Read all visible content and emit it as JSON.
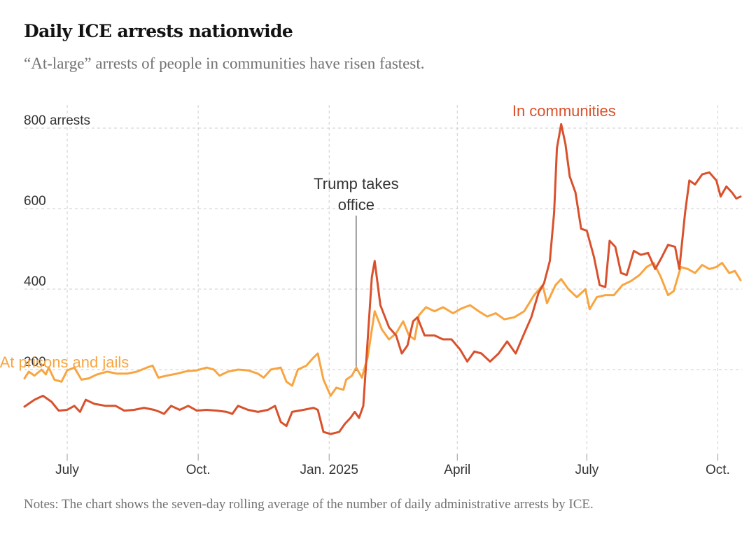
{
  "header": {
    "title": "Daily ICE arrests nationwide",
    "subtitle": "“At-large” arrests of people in communities have risen fastest."
  },
  "notes": "Notes: The chart shows the seven-day rolling average of the number of daily administrative arrests by ICE.",
  "chart_data": {
    "type": "line",
    "title": "Daily ICE arrests nationwide",
    "subtitle": "“At-large” arrests of people in communities have risen fastest.",
    "xlabel": "",
    "ylabel": "arrests",
    "ylim": [
      0,
      800
    ],
    "xlim": [
      "2024-06-01",
      "2025-10-17"
    ],
    "grid": true,
    "y_ticks": [
      {
        "value": 800,
        "label": "800 arrests"
      },
      {
        "value": 600,
        "label": "600"
      },
      {
        "value": 400,
        "label": "400"
      },
      {
        "value": 200,
        "label": "200"
      }
    ],
    "x_ticks": [
      {
        "date": "2024-07-01",
        "label": "July"
      },
      {
        "date": "2024-10-01",
        "label": "Oct."
      },
      {
        "date": "2025-01-01",
        "label": "Jan. 2025"
      },
      {
        "date": "2025-04-01",
        "label": "April"
      },
      {
        "date": "2025-07-01",
        "label": "July"
      },
      {
        "date": "2025-10-01",
        "label": "Oct."
      }
    ],
    "annotations": [
      {
        "date": "2025-01-20",
        "label_lines": [
          "Trump takes",
          "office"
        ]
      }
    ],
    "colors": {
      "communities": "#d9512c",
      "prisons": "#f8a541"
    },
    "series": [
      {
        "key": "prisons",
        "name": "At prisons and jails",
        "color": "#f8a541",
        "points": [
          [
            "2024-06-01",
            178
          ],
          [
            "2024-06-04",
            195
          ],
          [
            "2024-06-08",
            185
          ],
          [
            "2024-06-13",
            200
          ],
          [
            "2024-06-16",
            188
          ],
          [
            "2024-06-18",
            205
          ],
          [
            "2024-06-22",
            175
          ],
          [
            "2024-06-27",
            170
          ],
          [
            "2024-07-01",
            198
          ],
          [
            "2024-07-06",
            205
          ],
          [
            "2024-07-11",
            175
          ],
          [
            "2024-07-16",
            178
          ],
          [
            "2024-07-22",
            188
          ],
          [
            "2024-07-29",
            195
          ],
          [
            "2024-08-05",
            190
          ],
          [
            "2024-08-12",
            190
          ],
          [
            "2024-08-19",
            195
          ],
          [
            "2024-08-26",
            205
          ],
          [
            "2024-08-30",
            210
          ],
          [
            "2024-09-03",
            180
          ],
          [
            "2024-09-09",
            185
          ],
          [
            "2024-09-16",
            190
          ],
          [
            "2024-09-23",
            196
          ],
          [
            "2024-09-30",
            198
          ],
          [
            "2024-10-07",
            205
          ],
          [
            "2024-10-12",
            200
          ],
          [
            "2024-10-16",
            185
          ],
          [
            "2024-10-22",
            195
          ],
          [
            "2024-10-29",
            200
          ],
          [
            "2024-11-05",
            198
          ],
          [
            "2024-11-12",
            190
          ],
          [
            "2024-11-16",
            180
          ],
          [
            "2024-11-21",
            200
          ],
          [
            "2024-11-28",
            205
          ],
          [
            "2024-12-02",
            170
          ],
          [
            "2024-12-06",
            160
          ],
          [
            "2024-12-10",
            200
          ],
          [
            "2024-12-16",
            210
          ],
          [
            "2024-12-21",
            230
          ],
          [
            "2024-12-24",
            240
          ],
          [
            "2024-12-28",
            175
          ],
          [
            "2025-01-02",
            135
          ],
          [
            "2025-01-06",
            155
          ],
          [
            "2025-01-11",
            150
          ],
          [
            "2025-01-13",
            175
          ],
          [
            "2025-01-17",
            185
          ],
          [
            "2025-01-20",
            205
          ],
          [
            "2025-01-24",
            180
          ],
          [
            "2025-01-28",
            230
          ],
          [
            "2025-02-02",
            345
          ],
          [
            "2025-02-07",
            300
          ],
          [
            "2025-02-12",
            275
          ],
          [
            "2025-02-17",
            290
          ],
          [
            "2025-02-22",
            320
          ],
          [
            "2025-02-26",
            285
          ],
          [
            "2025-03-02",
            275
          ],
          [
            "2025-03-05",
            335
          ],
          [
            "2025-03-10",
            355
          ],
          [
            "2025-03-16",
            345
          ],
          [
            "2025-03-22",
            355
          ],
          [
            "2025-03-29",
            340
          ],
          [
            "2025-04-04",
            352
          ],
          [
            "2025-04-10",
            360
          ],
          [
            "2025-04-16",
            345
          ],
          [
            "2025-04-22",
            332
          ],
          [
            "2025-04-28",
            340
          ],
          [
            "2025-05-04",
            325
          ],
          [
            "2025-05-11",
            330
          ],
          [
            "2025-05-18",
            345
          ],
          [
            "2025-05-25",
            385
          ],
          [
            "2025-05-31",
            410
          ],
          [
            "2025-06-03",
            365
          ],
          [
            "2025-06-09",
            410
          ],
          [
            "2025-06-13",
            425
          ],
          [
            "2025-06-18",
            400
          ],
          [
            "2025-06-24",
            380
          ],
          [
            "2025-06-30",
            400
          ],
          [
            "2025-07-03",
            350
          ],
          [
            "2025-07-08",
            380
          ],
          [
            "2025-07-14",
            385
          ],
          [
            "2025-07-20",
            385
          ],
          [
            "2025-07-26",
            410
          ],
          [
            "2025-08-01",
            420
          ],
          [
            "2025-08-07",
            435
          ],
          [
            "2025-08-12",
            455
          ],
          [
            "2025-08-17",
            465
          ],
          [
            "2025-08-22",
            430
          ],
          [
            "2025-08-27",
            385
          ],
          [
            "2025-08-31",
            395
          ],
          [
            "2025-09-05",
            455
          ],
          [
            "2025-09-10",
            450
          ],
          [
            "2025-09-15",
            440
          ],
          [
            "2025-09-20",
            460
          ],
          [
            "2025-09-25",
            450
          ],
          [
            "2025-09-30",
            455
          ],
          [
            "2025-10-04",
            465
          ],
          [
            "2025-10-09",
            440
          ],
          [
            "2025-10-13",
            445
          ],
          [
            "2025-10-17",
            422
          ]
        ]
      },
      {
        "key": "communities",
        "name": "In communities",
        "color": "#d9512c",
        "points": [
          [
            "2024-06-01",
            108
          ],
          [
            "2024-06-08",
            125
          ],
          [
            "2024-06-14",
            135
          ],
          [
            "2024-06-20",
            120
          ],
          [
            "2024-06-25",
            98
          ],
          [
            "2024-07-01",
            100
          ],
          [
            "2024-07-06",
            110
          ],
          [
            "2024-07-10",
            95
          ],
          [
            "2024-07-14",
            125
          ],
          [
            "2024-07-20",
            115
          ],
          [
            "2024-07-28",
            110
          ],
          [
            "2024-08-04",
            110
          ],
          [
            "2024-08-10",
            98
          ],
          [
            "2024-08-17",
            100
          ],
          [
            "2024-08-24",
            105
          ],
          [
            "2024-08-31",
            100
          ],
          [
            "2024-09-04",
            95
          ],
          [
            "2024-09-07",
            90
          ],
          [
            "2024-09-12",
            110
          ],
          [
            "2024-09-18",
            100
          ],
          [
            "2024-09-24",
            110
          ],
          [
            "2024-09-30",
            98
          ],
          [
            "2024-10-07",
            100
          ],
          [
            "2024-10-14",
            98
          ],
          [
            "2024-10-21",
            95
          ],
          [
            "2024-10-25",
            90
          ],
          [
            "2024-10-29",
            110
          ],
          [
            "2024-11-05",
            100
          ],
          [
            "2024-11-12",
            95
          ],
          [
            "2024-11-19",
            100
          ],
          [
            "2024-11-24",
            110
          ],
          [
            "2024-11-28",
            70
          ],
          [
            "2024-12-02",
            60
          ],
          [
            "2024-12-06",
            95
          ],
          [
            "2024-12-14",
            100
          ],
          [
            "2024-12-21",
            105
          ],
          [
            "2024-12-24",
            100
          ],
          [
            "2024-12-28",
            45
          ],
          [
            "2025-01-02",
            40
          ],
          [
            "2025-01-08",
            45
          ],
          [
            "2025-01-12",
            65
          ],
          [
            "2025-01-16",
            80
          ],
          [
            "2025-01-19",
            95
          ],
          [
            "2025-01-22",
            80
          ],
          [
            "2025-01-25",
            110
          ],
          [
            "2025-01-28",
            270
          ],
          [
            "2025-01-31",
            430
          ],
          [
            "2025-02-02",
            470
          ],
          [
            "2025-02-06",
            360
          ],
          [
            "2025-02-12",
            305
          ],
          [
            "2025-02-17",
            285
          ],
          [
            "2025-02-21",
            240
          ],
          [
            "2025-02-25",
            260
          ],
          [
            "2025-03-01",
            320
          ],
          [
            "2025-03-04",
            330
          ],
          [
            "2025-03-09",
            285
          ],
          [
            "2025-03-16",
            285
          ],
          [
            "2025-03-22",
            275
          ],
          [
            "2025-03-28",
            275
          ],
          [
            "2025-04-03",
            250
          ],
          [
            "2025-04-08",
            220
          ],
          [
            "2025-04-13",
            245
          ],
          [
            "2025-04-18",
            240
          ],
          [
            "2025-04-24",
            220
          ],
          [
            "2025-04-30",
            240
          ],
          [
            "2025-05-06",
            270
          ],
          [
            "2025-05-12",
            240
          ],
          [
            "2025-05-18",
            290
          ],
          [
            "2025-05-23",
            330
          ],
          [
            "2025-05-28",
            390
          ],
          [
            "2025-06-01",
            415
          ],
          [
            "2025-06-05",
            470
          ],
          [
            "2025-06-08",
            590
          ],
          [
            "2025-06-10",
            750
          ],
          [
            "2025-06-13",
            810
          ],
          [
            "2025-06-16",
            760
          ],
          [
            "2025-06-19",
            680
          ],
          [
            "2025-06-23",
            640
          ],
          [
            "2025-06-27",
            550
          ],
          [
            "2025-07-01",
            545
          ],
          [
            "2025-07-06",
            480
          ],
          [
            "2025-07-10",
            410
          ],
          [
            "2025-07-14",
            405
          ],
          [
            "2025-07-17",
            520
          ],
          [
            "2025-07-21",
            505
          ],
          [
            "2025-07-25",
            440
          ],
          [
            "2025-07-29",
            435
          ],
          [
            "2025-08-03",
            495
          ],
          [
            "2025-08-08",
            485
          ],
          [
            "2025-08-13",
            490
          ],
          [
            "2025-08-18",
            450
          ],
          [
            "2025-08-22",
            475
          ],
          [
            "2025-08-27",
            510
          ],
          [
            "2025-09-01",
            505
          ],
          [
            "2025-09-04",
            450
          ],
          [
            "2025-09-08",
            590
          ],
          [
            "2025-09-11",
            670
          ],
          [
            "2025-09-15",
            660
          ],
          [
            "2025-09-20",
            685
          ],
          [
            "2025-09-25",
            690
          ],
          [
            "2025-09-30",
            670
          ],
          [
            "2025-10-03",
            630
          ],
          [
            "2025-10-07",
            655
          ],
          [
            "2025-10-11",
            640
          ],
          [
            "2025-10-14",
            625
          ],
          [
            "2025-10-17",
            630
          ]
        ]
      }
    ],
    "series_labels": [
      {
        "key": "prisons",
        "text": "At prisons and jails",
        "date": "2024-06-29",
        "value": 205
      },
      {
        "key": "communities",
        "text": "In communities",
        "date": "2025-06-15",
        "value": 830
      }
    ]
  }
}
